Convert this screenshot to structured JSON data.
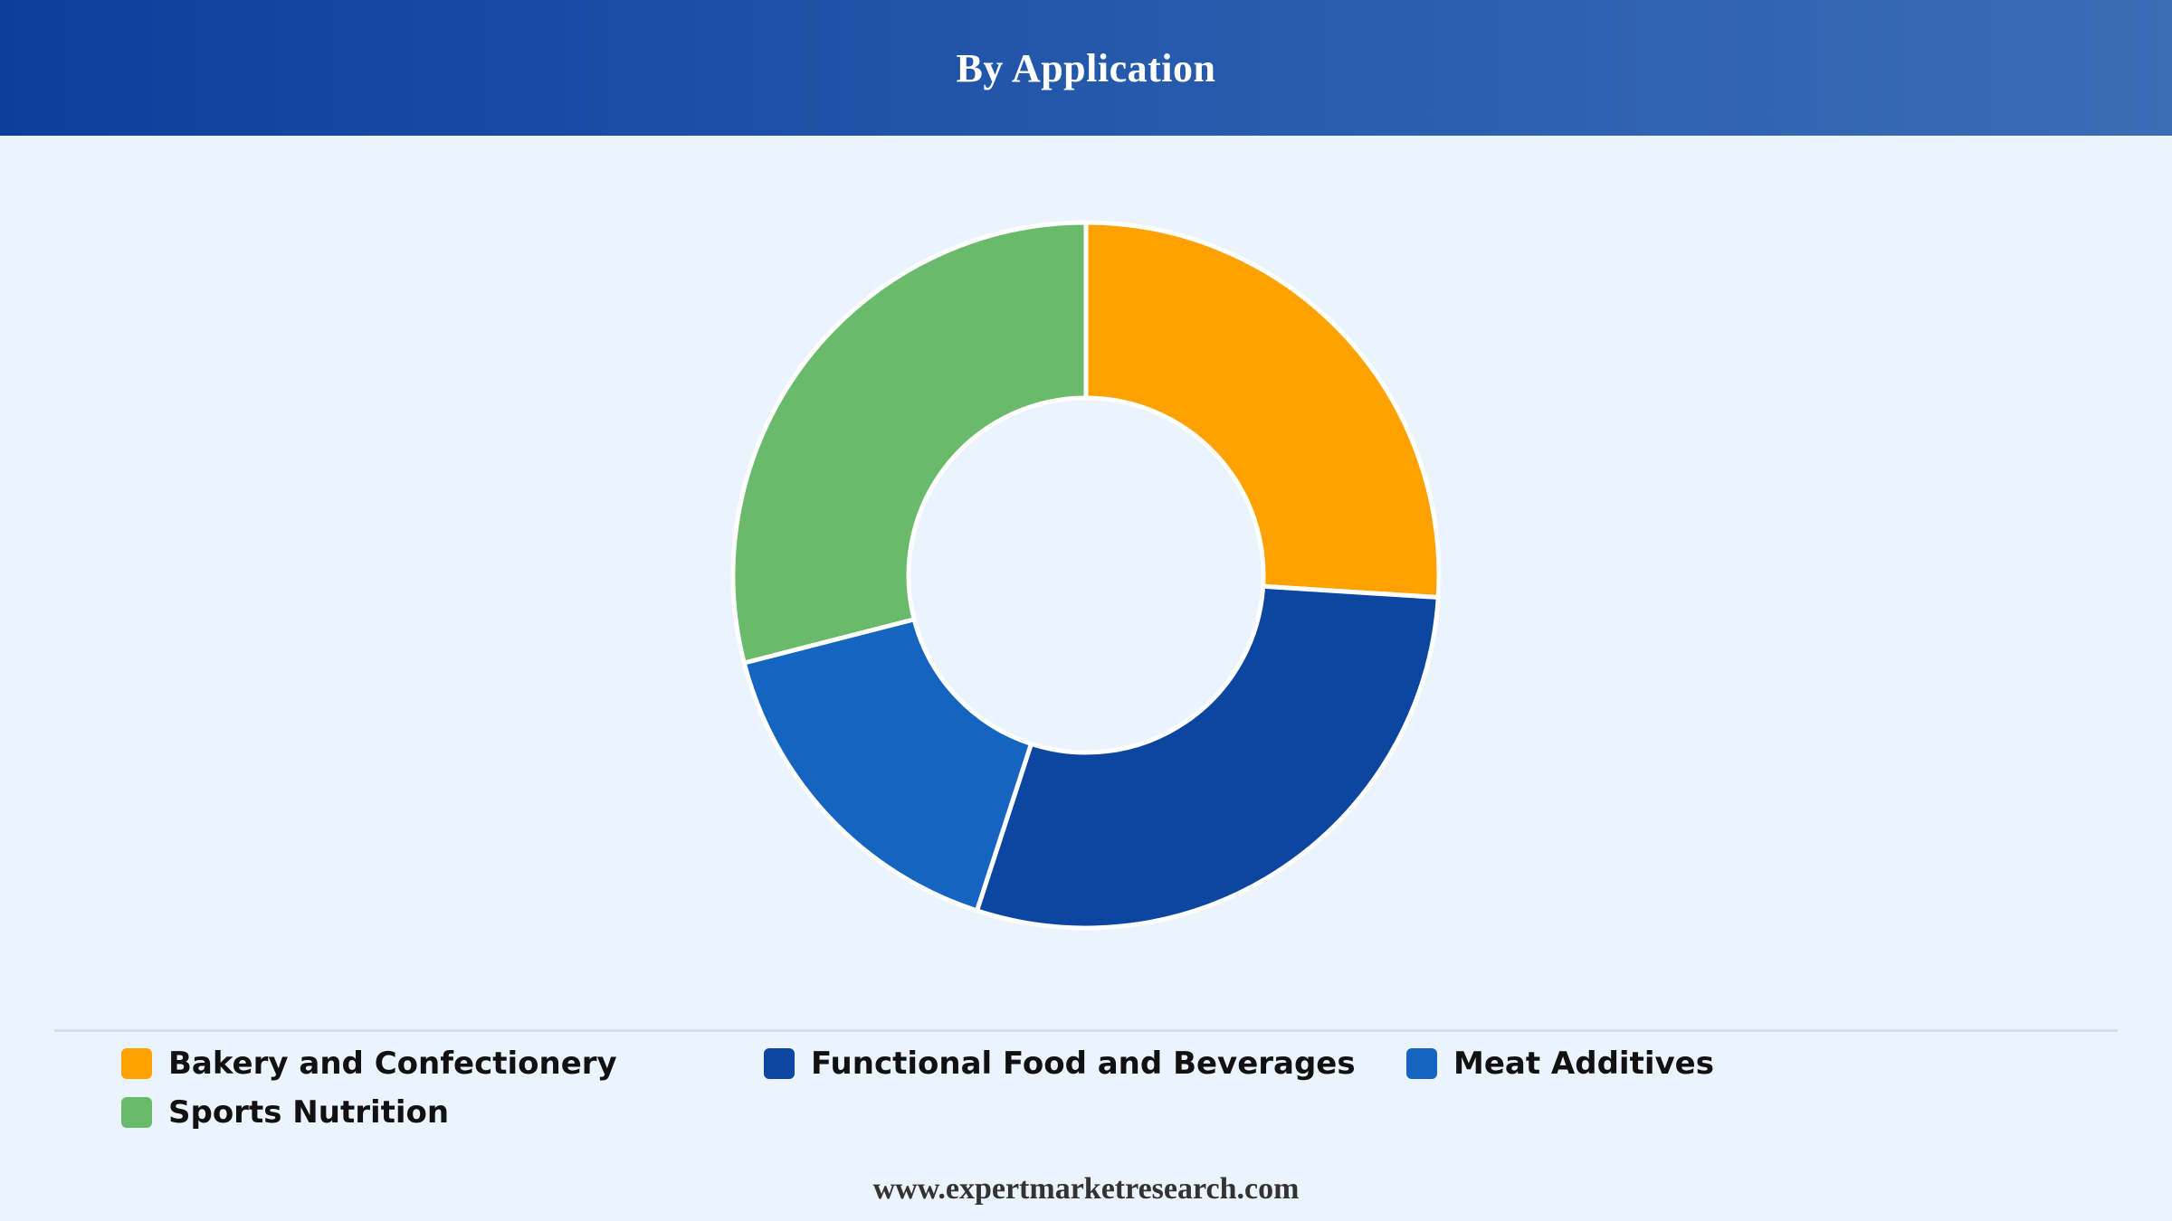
{
  "header": {
    "title": "By Application"
  },
  "chart_data": {
    "type": "pie",
    "variant": "donut",
    "title": "By Application",
    "categories": [
      "Bakery and Confectionery",
      "Functional Food and Beverages",
      "Meat Additives",
      "Sports Nutrition"
    ],
    "values": [
      26,
      29,
      16,
      29
    ],
    "unit": "%",
    "colors": [
      "#ffa200",
      "#0d46a0",
      "#1565c0",
      "#69bb6b"
    ],
    "legend_position": "bottom"
  },
  "legend": {
    "items": [
      {
        "label": "Bakery and Confectionery",
        "color": "#ffa200"
      },
      {
        "label": "Functional Food and Beverages",
        "color": "#0d46a0"
      },
      {
        "label": "Meat Additives",
        "color": "#1565c0"
      },
      {
        "label": "Sports Nutrition",
        "color": "#69bb6b"
      }
    ]
  },
  "footer": {
    "text": "www.expertmarketresearch.com"
  }
}
